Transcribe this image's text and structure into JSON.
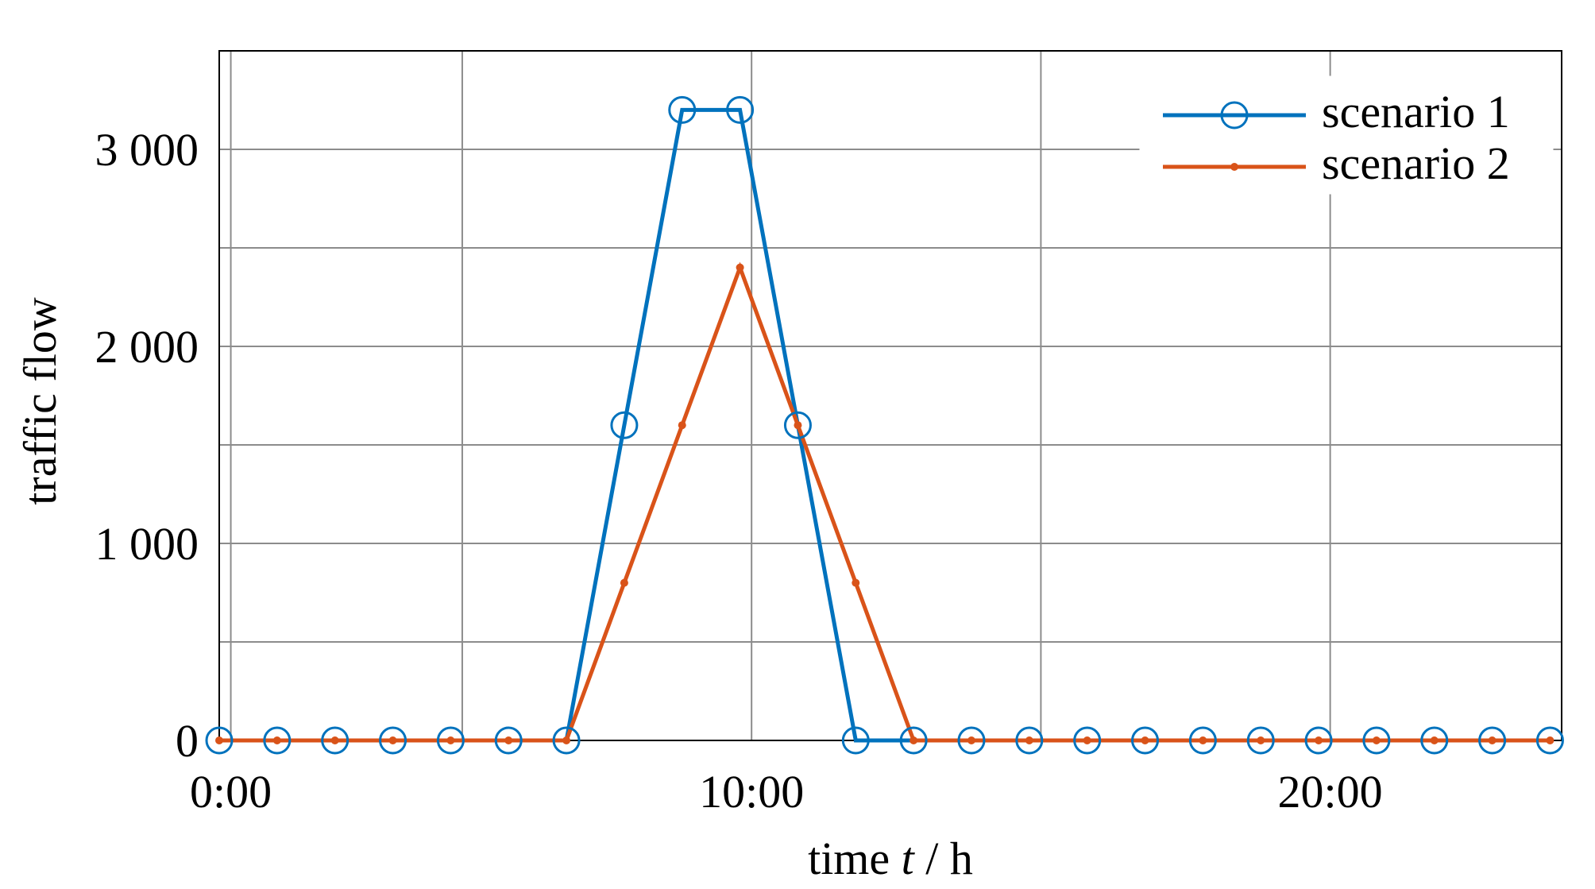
{
  "chart_data": {
    "type": "line",
    "title": "",
    "xlabel_prefix": "time ",
    "xlabel_var": "t",
    "xlabel_suffix": " / h",
    "ylabel": "traffic flow",
    "xlim": [
      -0.2,
      23
    ],
    "ylim": [
      0,
      3500
    ],
    "grid": true,
    "legend_position": "top-right",
    "x_ticks": [
      {
        "value": 0,
        "label": "0:00"
      },
      {
        "value": 9,
        "label": "10:00"
      },
      {
        "value": 19,
        "label": "20:00"
      }
    ],
    "y_ticks": [
      {
        "value": 0,
        "label": "0"
      },
      {
        "value": 1000,
        "label": "1 000"
      },
      {
        "value": 2000,
        "label": "2 000"
      },
      {
        "value": 3000,
        "label": "3 000"
      }
    ],
    "x_gridlines": [
      0,
      4,
      9,
      14,
      19
    ],
    "y_gridlines": [
      500,
      1000,
      1500,
      2000,
      2500,
      3000
    ],
    "series": [
      {
        "name": "scenario 1",
        "color": "#0072BD",
        "marker": "circle",
        "x": [
          -0.2,
          0.8,
          1.8,
          2.8,
          3.8,
          4.8,
          5.8,
          6.8,
          7.8,
          8.8,
          9.8,
          10.8,
          11.8,
          12.8,
          13.8,
          14.8,
          15.8,
          16.8,
          17.8,
          18.8,
          19.8,
          20.8,
          21.8,
          22.8
        ],
        "y": [
          0,
          0,
          0,
          0,
          0,
          0,
          0,
          1600,
          3200,
          3200,
          1600,
          0,
          0,
          0,
          0,
          0,
          0,
          0,
          0,
          0,
          0,
          0,
          0,
          0
        ]
      },
      {
        "name": "scenario 2",
        "color": "#D95319",
        "marker": "dot",
        "x": [
          -0.2,
          0.8,
          1.8,
          2.8,
          3.8,
          4.8,
          5.8,
          6.8,
          7.8,
          8.8,
          9.8,
          10.8,
          11.8,
          12.8,
          13.8,
          14.8,
          15.8,
          16.8,
          17.8,
          18.8,
          19.8,
          20.8,
          21.8,
          22.8
        ],
        "y": [
          0,
          0,
          0,
          0,
          0,
          0,
          0,
          800,
          1600,
          2400,
          1600,
          800,
          0,
          0,
          0,
          0,
          0,
          0,
          0,
          0,
          0,
          0,
          0,
          0
        ]
      }
    ]
  }
}
